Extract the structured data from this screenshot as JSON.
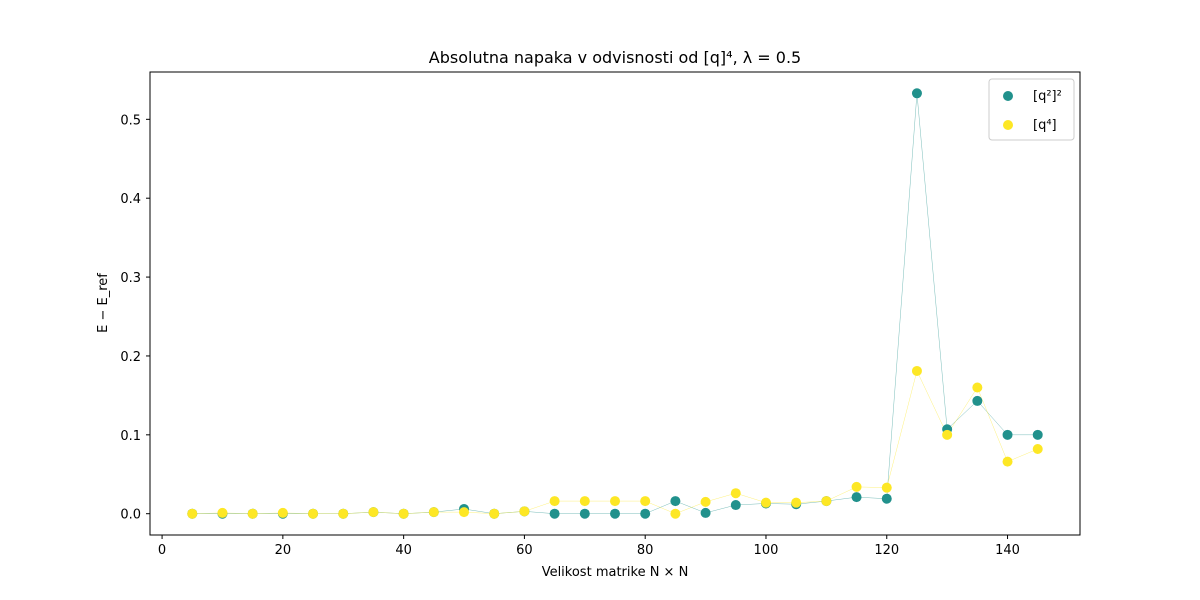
{
  "chart_data": {
    "type": "scatter",
    "title": "Absolutna napaka v odvisnosti od [q]⁴, λ = 0.5",
    "xlabel": "Velikost matrike N × N",
    "ylabel": "E − E_ref",
    "xlim": [
      -2,
      152
    ],
    "ylim": [
      -0.027,
      0.56
    ],
    "xticks": [
      0,
      20,
      40,
      60,
      80,
      100,
      120,
      140
    ],
    "yticks": [
      0.0,
      0.1,
      0.2,
      0.3,
      0.4,
      0.5
    ],
    "grid": false,
    "legend_position": "top-right",
    "x": [
      5,
      10,
      15,
      20,
      25,
      30,
      35,
      40,
      45,
      50,
      55,
      60,
      65,
      70,
      75,
      80,
      85,
      90,
      95,
      100,
      105,
      110,
      115,
      120,
      125,
      130,
      135,
      140,
      145
    ],
    "series": [
      {
        "name": "[q²]²",
        "color": "#21918c",
        "connected": true,
        "values": [
          0.0,
          0.0,
          0.0,
          0.0,
          0.0,
          0.0,
          0.002,
          0.0,
          0.002,
          0.006,
          0.0,
          0.003,
          0.0,
          0.0,
          0.0,
          0.0,
          0.016,
          0.001,
          0.011,
          0.013,
          0.012,
          0.016,
          0.021,
          0.019,
          0.533,
          0.107,
          0.143,
          0.1,
          0.1
        ]
      },
      {
        "name": "[q⁴]",
        "color": "#fde725",
        "connected": true,
        "values": [
          0.0,
          0.001,
          0.0,
          0.001,
          0.0,
          0.0,
          0.002,
          0.0,
          0.002,
          0.002,
          0.0,
          0.003,
          0.016,
          0.016,
          0.016,
          0.016,
          0.0,
          0.015,
          0.026,
          0.014,
          0.014,
          0.016,
          0.034,
          0.033,
          0.181,
          0.1,
          0.16,
          0.066,
          0.082
        ]
      }
    ]
  }
}
